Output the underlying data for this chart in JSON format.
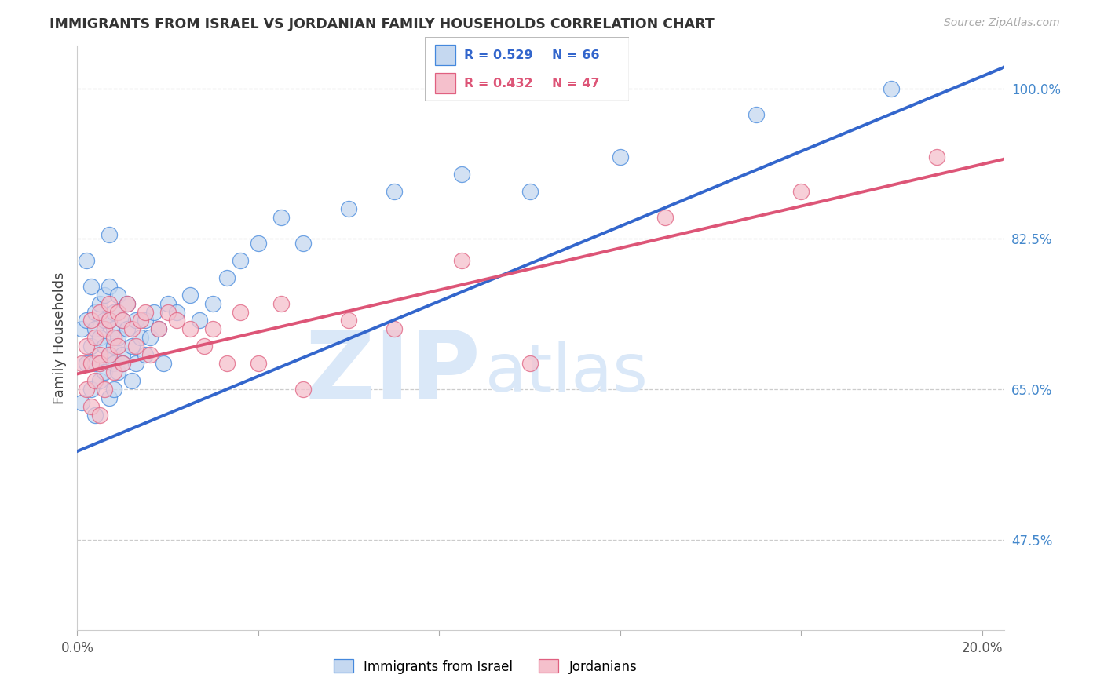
{
  "title": "IMMIGRANTS FROM ISRAEL VS JORDANIAN FAMILY HOUSEHOLDS CORRELATION CHART",
  "source": "Source: ZipAtlas.com",
  "ylabel": "Family Households",
  "xlim": [
    0.0,
    0.205
  ],
  "ylim": [
    0.37,
    1.05
  ],
  "y_ticks": [
    0.475,
    0.65,
    0.825,
    1.0
  ],
  "y_tick_labels": [
    "47.5%",
    "65.0%",
    "82.5%",
    "100.0%"
  ],
  "x_ticks": [
    0.0,
    0.04,
    0.08,
    0.12,
    0.16,
    0.2
  ],
  "x_tick_labels": [
    "0.0%",
    "",
    "",
    "",
    "",
    "20.0%"
  ],
  "grid_color": "#cccccc",
  "background_color": "#ffffff",
  "israel_fill_color": "#c5d8f0",
  "israel_edge_color": "#4488dd",
  "jordan_fill_color": "#f5c0cc",
  "jordan_edge_color": "#e06080",
  "israel_line_color": "#3366cc",
  "jordan_line_color": "#dd5577",
  "israel_label": "Immigrants from Israel",
  "jordan_label": "Jordanians",
  "r_israel": "0.529",
  "n_israel": "66",
  "r_jordan": "0.432",
  "n_jordan": "47",
  "watermark_zip": "ZIP",
  "watermark_atlas": "atlas",
  "watermark_color": "#dae8f8",
  "israel_line_x": [
    0.0,
    0.205
  ],
  "israel_line_y": [
    0.578,
    1.025
  ],
  "jordan_line_x": [
    0.0,
    0.205
  ],
  "jordan_line_y": [
    0.668,
    0.918
  ],
  "israel_x": [
    0.001,
    0.001,
    0.002,
    0.002,
    0.002,
    0.003,
    0.003,
    0.003,
    0.004,
    0.004,
    0.004,
    0.004,
    0.005,
    0.005,
    0.005,
    0.005,
    0.006,
    0.006,
    0.006,
    0.006,
    0.007,
    0.007,
    0.007,
    0.007,
    0.007,
    0.008,
    0.008,
    0.008,
    0.008,
    0.008,
    0.009,
    0.009,
    0.009,
    0.01,
    0.01,
    0.01,
    0.011,
    0.011,
    0.012,
    0.012,
    0.013,
    0.013,
    0.014,
    0.015,
    0.015,
    0.016,
    0.017,
    0.018,
    0.019,
    0.02,
    0.022,
    0.025,
    0.027,
    0.03,
    0.033,
    0.036,
    0.04,
    0.045,
    0.05,
    0.06,
    0.07,
    0.085,
    0.1,
    0.12,
    0.15,
    0.18
  ],
  "israel_y": [
    0.635,
    0.72,
    0.68,
    0.73,
    0.8,
    0.65,
    0.7,
    0.77,
    0.62,
    0.68,
    0.74,
    0.72,
    0.66,
    0.71,
    0.75,
    0.68,
    0.7,
    0.73,
    0.67,
    0.76,
    0.64,
    0.69,
    0.73,
    0.77,
    0.83,
    0.65,
    0.7,
    0.74,
    0.68,
    0.72,
    0.67,
    0.71,
    0.76,
    0.69,
    0.73,
    0.68,
    0.72,
    0.75,
    0.7,
    0.66,
    0.73,
    0.68,
    0.71,
    0.69,
    0.73,
    0.71,
    0.74,
    0.72,
    0.68,
    0.75,
    0.74,
    0.76,
    0.73,
    0.75,
    0.78,
    0.8,
    0.82,
    0.85,
    0.82,
    0.86,
    0.88,
    0.9,
    0.88,
    0.92,
    0.97,
    1.0
  ],
  "jordan_x": [
    0.001,
    0.002,
    0.002,
    0.003,
    0.003,
    0.003,
    0.004,
    0.004,
    0.005,
    0.005,
    0.005,
    0.006,
    0.006,
    0.007,
    0.007,
    0.007,
    0.008,
    0.008,
    0.009,
    0.009,
    0.01,
    0.01,
    0.011,
    0.012,
    0.013,
    0.014,
    0.015,
    0.016,
    0.018,
    0.02,
    0.022,
    0.025,
    0.028,
    0.03,
    0.033,
    0.036,
    0.04,
    0.045,
    0.05,
    0.06,
    0.07,
    0.085,
    0.1,
    0.13,
    0.16,
    0.19,
    0.005
  ],
  "jordan_y": [
    0.68,
    0.65,
    0.7,
    0.63,
    0.68,
    0.73,
    0.66,
    0.71,
    0.69,
    0.74,
    0.68,
    0.72,
    0.65,
    0.73,
    0.69,
    0.75,
    0.67,
    0.71,
    0.7,
    0.74,
    0.68,
    0.73,
    0.75,
    0.72,
    0.7,
    0.73,
    0.74,
    0.69,
    0.72,
    0.74,
    0.73,
    0.72,
    0.7,
    0.72,
    0.68,
    0.74,
    0.68,
    0.75,
    0.65,
    0.73,
    0.72,
    0.8,
    0.68,
    0.85,
    0.88,
    0.92,
    0.62
  ]
}
